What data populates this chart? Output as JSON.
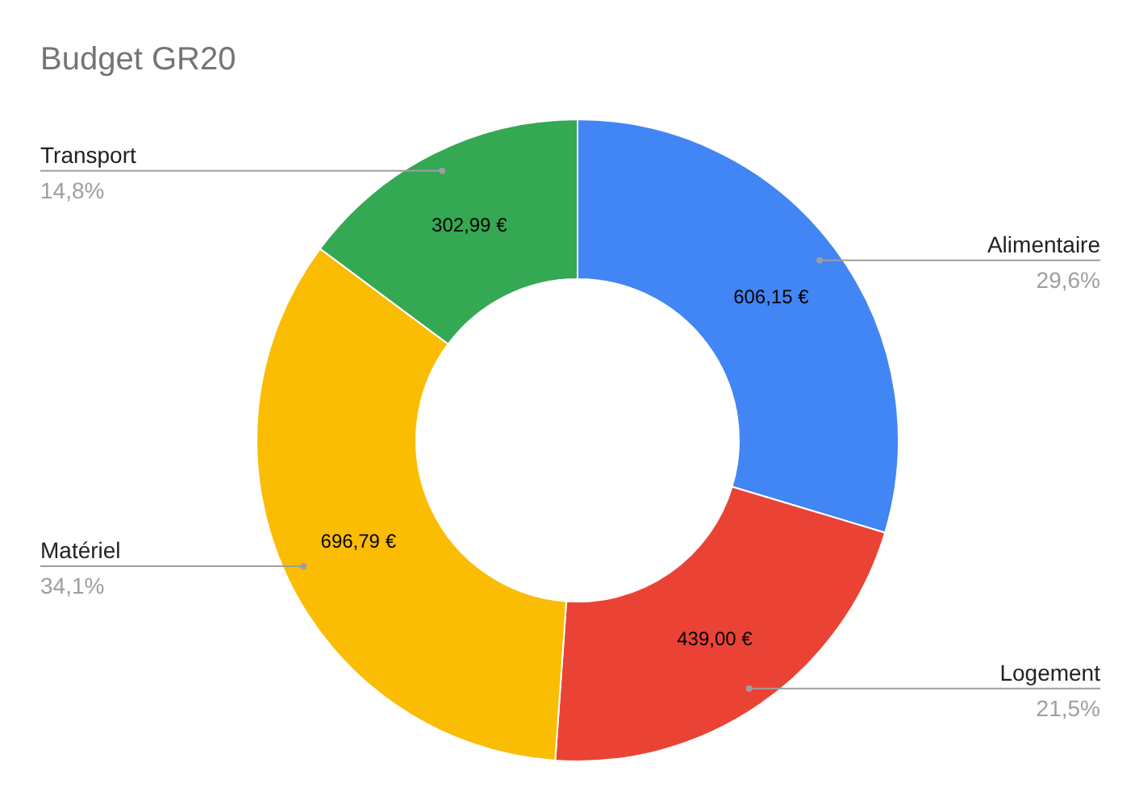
{
  "chart_data": {
    "type": "donut",
    "title": "Budget GR20",
    "categories": [
      "Alimentaire",
      "Logement",
      "Matériel",
      "Transport"
    ],
    "values": [
      606.15,
      439.0,
      696.79,
      302.99
    ],
    "value_labels": [
      "606,15 €",
      "439,00 €",
      "696,79 €",
      "302,99 €"
    ],
    "annotations": [
      "29,6%",
      "21,5%",
      "34,1%",
      "14,8%"
    ],
    "colors": [
      "#4285f4",
      "#ea4335",
      "#fbbc04",
      "#34a853"
    ]
  }
}
